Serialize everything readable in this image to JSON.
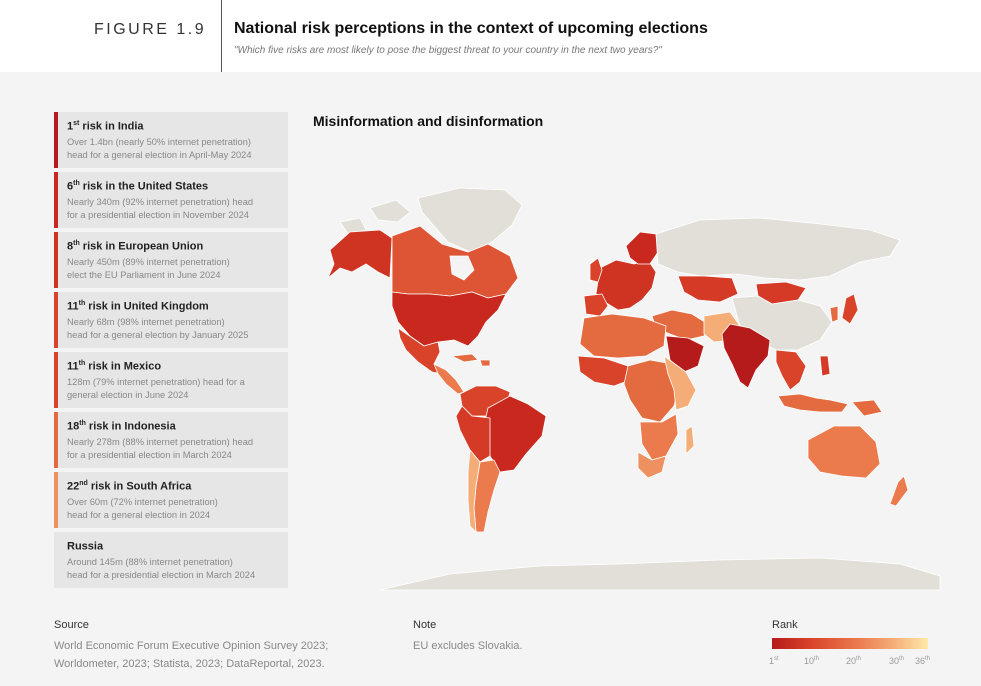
{
  "header": {
    "figure_label": "FIGURE 1.9",
    "title": "National risk perceptions in the context of upcoming elections",
    "subtitle": "\"Which five risks are most likely to pose the biggest threat to your country in the next two years?\""
  },
  "map": {
    "title": "Misinformation and disinformation"
  },
  "cards": [
    {
      "rank_num": "1",
      "rank_sup": "st",
      "country": " risk in India",
      "desc1": "Over 1.4bn (nearly 50% internet penetration)",
      "desc2": "head for a general election in April-May 2024",
      "color": "#b61b1b"
    },
    {
      "rank_num": "6",
      "rank_sup": "th",
      "country": " risk in the United States",
      "desc1": "Nearly 340m (92% internet penetration) head",
      "desc2": "for a presidential election in November 2024",
      "color": "#c8281e"
    },
    {
      "rank_num": "8",
      "rank_sup": "th",
      "country": " risk in European Union",
      "desc1": "Nearly 450m (89% internet penetration)",
      "desc2": "elect the EU Parliament in June 2024",
      "color": "#cf3322"
    },
    {
      "rank_num": "11",
      "rank_sup": "th",
      "country": " risk in United Kingdom",
      "desc1": "Nearly 68m (98% internet penetration)",
      "desc2": "head for a general election by January 2025",
      "color": "#d9432a"
    },
    {
      "rank_num": "11",
      "rank_sup": "th",
      "country": " risk in Mexico",
      "desc1": "128m (79% internet penetration) head for a",
      "desc2": "general election in June 2024",
      "color": "#d9432a"
    },
    {
      "rank_num": "18",
      "rank_sup": "th",
      "country": " risk in Indonesia",
      "desc1": "Nearly 278m (88% internet penetration) head",
      "desc2": "for a presidential election in March 2024",
      "color": "#e46a3f"
    },
    {
      "rank_num": "22",
      "rank_sup": "nd",
      "country": " risk in South Africa",
      "desc1": "Over 60m (72% internet penetration)",
      "desc2": "head for a general election in 2024",
      "color": "#ee9060"
    },
    {
      "rank_num": "",
      "rank_sup": "",
      "country": "Russia",
      "desc1": "Around 145m (88% internet penetration)",
      "desc2": "head for a presidential election in March 2024",
      "color": "#e6e6e6"
    }
  ],
  "footer": {
    "source_heading": "Source",
    "source_line1": "World Economic Forum Executive Opinion Survey 2023;",
    "source_line2": "Worldometer, 2023; Statista, 2023; DataReportal, 2023.",
    "note_heading": "Note",
    "note_text": "EU excludes Slovakia."
  },
  "legend": {
    "title": "Rank",
    "ticks": [
      {
        "num": "1",
        "sup": "st"
      },
      {
        "num": "10",
        "sup": "th"
      },
      {
        "num": "20",
        "sup": "th"
      },
      {
        "num": "30",
        "sup": "th"
      },
      {
        "num": "36",
        "sup": "th"
      }
    ],
    "colors": [
      "#b61b1b",
      "#d9432a",
      "#eb7a4d",
      "#f5ad78",
      "#fde9a8"
    ]
  },
  "colors": {
    "no_data": "#e2dfd8",
    "map_border": "#ffffff"
  }
}
